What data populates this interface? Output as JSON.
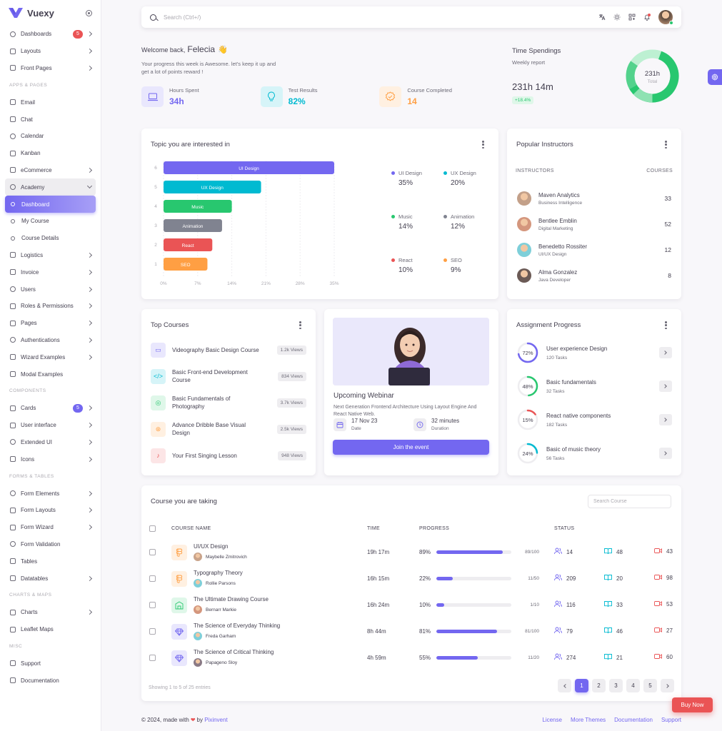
{
  "brand": {
    "name": "Vuexy"
  },
  "sidebar": {
    "items": [
      {
        "type": "item",
        "label": "Dashboards",
        "icon": "home-icon",
        "badge": "5",
        "badge_color": "#ea5455",
        "chevron": true
      },
      {
        "type": "item",
        "label": "Layouts",
        "icon": "layout-icon",
        "chevron": true
      },
      {
        "type": "item",
        "label": "Front Pages",
        "icon": "files-icon",
        "chevron": true
      },
      {
        "type": "section",
        "label": "APPS & PAGES"
      },
      {
        "type": "item",
        "label": "Email",
        "icon": "mail-icon"
      },
      {
        "type": "item",
        "label": "Chat",
        "icon": "chat-icon"
      },
      {
        "type": "item",
        "label": "Calendar",
        "icon": "calendar-icon"
      },
      {
        "type": "item",
        "label": "Kanban",
        "icon": "kanban-icon"
      },
      {
        "type": "item",
        "label": "eCommerce",
        "icon": "cart-icon",
        "chevron": true
      },
      {
        "type": "item",
        "label": "Academy",
        "icon": "book-icon",
        "chevron": "down",
        "open": true
      },
      {
        "type": "sub",
        "label": "Dashboard",
        "active": true
      },
      {
        "type": "sub",
        "label": "My Course"
      },
      {
        "type": "sub",
        "label": "Course Details"
      },
      {
        "type": "item",
        "label": "Logistics",
        "icon": "truck-icon",
        "chevron": true
      },
      {
        "type": "item",
        "label": "Invoice",
        "icon": "invoice-icon",
        "chevron": true
      },
      {
        "type": "item",
        "label": "Users",
        "icon": "users-icon",
        "chevron": true
      },
      {
        "type": "item",
        "label": "Roles & Permissions",
        "icon": "settings-icon",
        "chevron": true
      },
      {
        "type": "item",
        "label": "Pages",
        "icon": "page-icon",
        "chevron": true
      },
      {
        "type": "item",
        "label": "Authentications",
        "icon": "lock-icon",
        "chevron": true
      },
      {
        "type": "item",
        "label": "Wizard Examples",
        "icon": "wizard-icon",
        "chevron": true
      },
      {
        "type": "item",
        "label": "Modal Examples",
        "icon": "modal-icon"
      },
      {
        "type": "section",
        "label": "COMPONENTS"
      },
      {
        "type": "item",
        "label": "Cards",
        "icon": "cards-icon",
        "badge": "5",
        "badge_color": "#7367f0",
        "chevron": true
      },
      {
        "type": "item",
        "label": "User interface",
        "icon": "ui-icon",
        "chevron": true
      },
      {
        "type": "item",
        "label": "Extended UI",
        "icon": "extended-icon",
        "chevron": true
      },
      {
        "type": "item",
        "label": "Icons",
        "icon": "icons-icon",
        "chevron": true
      },
      {
        "type": "section",
        "label": "FORMS & TABLES"
      },
      {
        "type": "item",
        "label": "Form Elements",
        "icon": "toggle-icon",
        "chevron": true
      },
      {
        "type": "item",
        "label": "Form Layouts",
        "icon": "form-layout-icon",
        "chevron": true
      },
      {
        "type": "item",
        "label": "Form Wizard",
        "icon": "wizard-list-icon",
        "chevron": true
      },
      {
        "type": "item",
        "label": "Form Validation",
        "icon": "checkbox-icon"
      },
      {
        "type": "item",
        "label": "Tables",
        "icon": "table-icon"
      },
      {
        "type": "item",
        "label": "Datatables",
        "icon": "datatable-icon",
        "chevron": true
      },
      {
        "type": "section",
        "label": "CHARTS & MAPS"
      },
      {
        "type": "item",
        "label": "Charts",
        "icon": "chart-icon",
        "chevron": true
      },
      {
        "type": "item",
        "label": "Leaflet Maps",
        "icon": "map-icon"
      },
      {
        "type": "section",
        "label": "MISC"
      },
      {
        "type": "item",
        "label": "Support",
        "icon": "lifebuoy-icon"
      },
      {
        "type": "item",
        "label": "Documentation",
        "icon": "doc-icon"
      }
    ]
  },
  "navbar": {
    "search_placeholder": "Search (Ctrl+/)"
  },
  "welcome": {
    "greeting": "Welcome back,",
    "name": "Felecia",
    "wave": "👋",
    "text": "Your progress this week is Awesome. let's keep it up and get a lot of points reward !",
    "stats": [
      {
        "label": "Hours Spent",
        "value": "34h",
        "color": "#7367f0",
        "bg": "#e9e7fd",
        "icon": "laptop-icon"
      },
      {
        "label": "Test Results",
        "value": "82%",
        "color": "#00bad1",
        "bg": "#d6f4f8",
        "icon": "bulb-icon"
      },
      {
        "label": "Course Completed",
        "value": "14",
        "color": "#ff9f43",
        "bg": "#fff0e1",
        "icon": "badge-icon"
      }
    ]
  },
  "time_spendings": {
    "title": "Time Spendings",
    "subtitle": "Weekly report",
    "value": "231h 14m",
    "change": "+18.4%",
    "donut_value": "231h",
    "donut_label": "Total"
  },
  "topic": {
    "title": "Topic you are interested in",
    "chart_data": {
      "type": "bar",
      "orientation": "horizontal",
      "categories": [
        "UI Design",
        "UX Design",
        "Music",
        "Animation",
        "React",
        "SEO"
      ],
      "values": [
        35,
        20,
        14,
        12,
        10,
        9
      ],
      "colors": [
        "#7367f0",
        "#00bad1",
        "#28c76f",
        "#808390",
        "#ea5455",
        "#ff9f43"
      ],
      "y_tick_labels": [
        "6",
        "5",
        "4",
        "3",
        "2",
        "1"
      ],
      "x_ticks": [
        "0%",
        "7%",
        "14%",
        "21%",
        "28%",
        "35%"
      ],
      "xlim": [
        0,
        35
      ]
    },
    "legend": [
      {
        "label": "UI Design",
        "value": "35%",
        "color": "#7367f0"
      },
      {
        "label": "UX Design",
        "value": "20%",
        "color": "#00bad1"
      },
      {
        "label": "Music",
        "value": "14%",
        "color": "#28c76f"
      },
      {
        "label": "Animation",
        "value": "12%",
        "color": "#808390"
      },
      {
        "label": "React",
        "value": "10%",
        "color": "#ea5455"
      },
      {
        "label": "SEO",
        "value": "9%",
        "color": "#ff9f43"
      }
    ]
  },
  "instructors": {
    "title": "Popular Instructors",
    "col1": "INSTRUCTORS",
    "col2": "COURSES",
    "rows": [
      {
        "name": "Maven Analytics",
        "role": "Business Intelligence",
        "courses": "33",
        "color": "#c3a089"
      },
      {
        "name": "Bentlee Emblin",
        "role": "Digital Marketing",
        "courses": "52",
        "color": "#d4967d"
      },
      {
        "name": "Benedetto Rossiter",
        "role": "UI/UX Design",
        "courses": "12",
        "color": "#7ecfd9"
      },
      {
        "name": "Alma Gonzalez",
        "role": "Java Developer",
        "courses": "8",
        "color": "#6b5a55"
      }
    ]
  },
  "top_courses": {
    "title": "Top Courses",
    "rows": [
      {
        "name": "Videography Basic Design Course",
        "views": "1.2k Views",
        "color": "#7367f0",
        "bg": "#e9e7fd",
        "icon": "video-icon",
        "glyph": "▭"
      },
      {
        "name": "Basic Front-end Development Course",
        "views": "834 Views",
        "color": "#00bad1",
        "bg": "#d6f4f8",
        "icon": "code-icon",
        "glyph": "</>"
      },
      {
        "name": "Basic Fundamentals of Photography",
        "views": "3.7k Views",
        "color": "#28c76f",
        "bg": "#dff7e9",
        "icon": "camera-icon",
        "glyph": "◎"
      },
      {
        "name": "Advance Dribble Base Visual Design",
        "views": "2.5k Views",
        "color": "#ff9f43",
        "bg": "#fff0e1",
        "icon": "dribbble-icon",
        "glyph": "⊛"
      },
      {
        "name": "Your First Singing Lesson",
        "views": "948 Views",
        "color": "#ea5455",
        "bg": "#fce5e6",
        "icon": "microphone-icon",
        "glyph": "♪"
      }
    ]
  },
  "webinar": {
    "title": "Upcoming Webinar",
    "desc": "Next Generation Frontend Architecture Using Layout Engine And React Native Web.",
    "date": "17 Nov 23",
    "date_label": "Date",
    "duration": "32 minutes",
    "duration_label": "Duration",
    "button": "Join the event"
  },
  "assignment": {
    "title": "Assignment Progress",
    "rows": [
      {
        "name": "User experience Design",
        "tasks": "120 Tasks",
        "percent": "72%",
        "value": 72,
        "color": "#7367f0"
      },
      {
        "name": "Basic fundamentals",
        "tasks": "32 Tasks",
        "percent": "48%",
        "value": 48,
        "color": "#28c76f"
      },
      {
        "name": "React native components",
        "tasks": "182 Tasks",
        "percent": "15%",
        "value": 15,
        "color": "#ea5455"
      },
      {
        "name": "Basic of music theory",
        "tasks": "56 Tasks",
        "percent": "24%",
        "value": 24,
        "color": "#00bad1"
      }
    ]
  },
  "courses_table": {
    "title": "Course you are taking",
    "search_placeholder": "Search Course",
    "headers": {
      "name": "COURSE NAME",
      "time": "TIME",
      "progress": "PROGRESS",
      "status": "STATUS"
    },
    "rows": [
      {
        "name": "UI/UX Design",
        "author": "Maybelle Zmitrovich",
        "time": "19h 17m",
        "percent": "89%",
        "pvalue": 89,
        "fraction": "89/100",
        "users": "14",
        "lessons": "48",
        "videos": "43",
        "color": "#ff9f43",
        "bg": "#fff0e1",
        "icon": "figma-icon",
        "avatar": "#c9a38a"
      },
      {
        "name": "Typography Theory",
        "author": "Rollie Parsons",
        "time": "16h 15m",
        "percent": "22%",
        "pvalue": 22,
        "fraction": "11/50",
        "users": "209",
        "lessons": "20",
        "videos": "98",
        "color": "#ff9f43",
        "bg": "#fff0e1",
        "icon": "figma-icon",
        "avatar": "#7ecfd9"
      },
      {
        "name": "The Ultimate Drawing Course",
        "author": "Bernarr Markie",
        "time": "16h 24m",
        "percent": "10%",
        "pvalue": 10,
        "fraction": "1/10",
        "users": "116",
        "lessons": "33",
        "videos": "53",
        "color": "#28c76f",
        "bg": "#dff7e9",
        "icon": "drawing-icon",
        "avatar": "#d4967d"
      },
      {
        "name": "The Science of Everyday Thinking",
        "author": "Freda Garham",
        "time": "8h 44m",
        "percent": "81%",
        "pvalue": 81,
        "fraction": "81/100",
        "users": "79",
        "lessons": "46",
        "videos": "27",
        "color": "#7367f0",
        "bg": "#e9e7fd",
        "icon": "diamond-icon",
        "avatar": "#7ecfd9"
      },
      {
        "name": "The Science of Critical Thinking",
        "author": "Papageno Sloy",
        "time": "4h 59m",
        "percent": "55%",
        "pvalue": 55,
        "fraction": "11/20",
        "users": "274",
        "lessons": "21",
        "videos": "60",
        "color": "#7367f0",
        "bg": "#e9e7fd",
        "icon": "diamond-icon",
        "avatar": "#8a7a85"
      }
    ],
    "showing": "Showing 1 to 5 of 25 entries",
    "pages": [
      "1",
      "2",
      "3",
      "4",
      "5"
    ]
  },
  "footer": {
    "copyright": "© 2024, made with",
    "heart": "❤",
    "by": "by",
    "company": "Pixinvent",
    "links": [
      "License",
      "More Themes",
      "Documentation",
      "Support"
    ]
  },
  "buy_now": "Buy Now"
}
